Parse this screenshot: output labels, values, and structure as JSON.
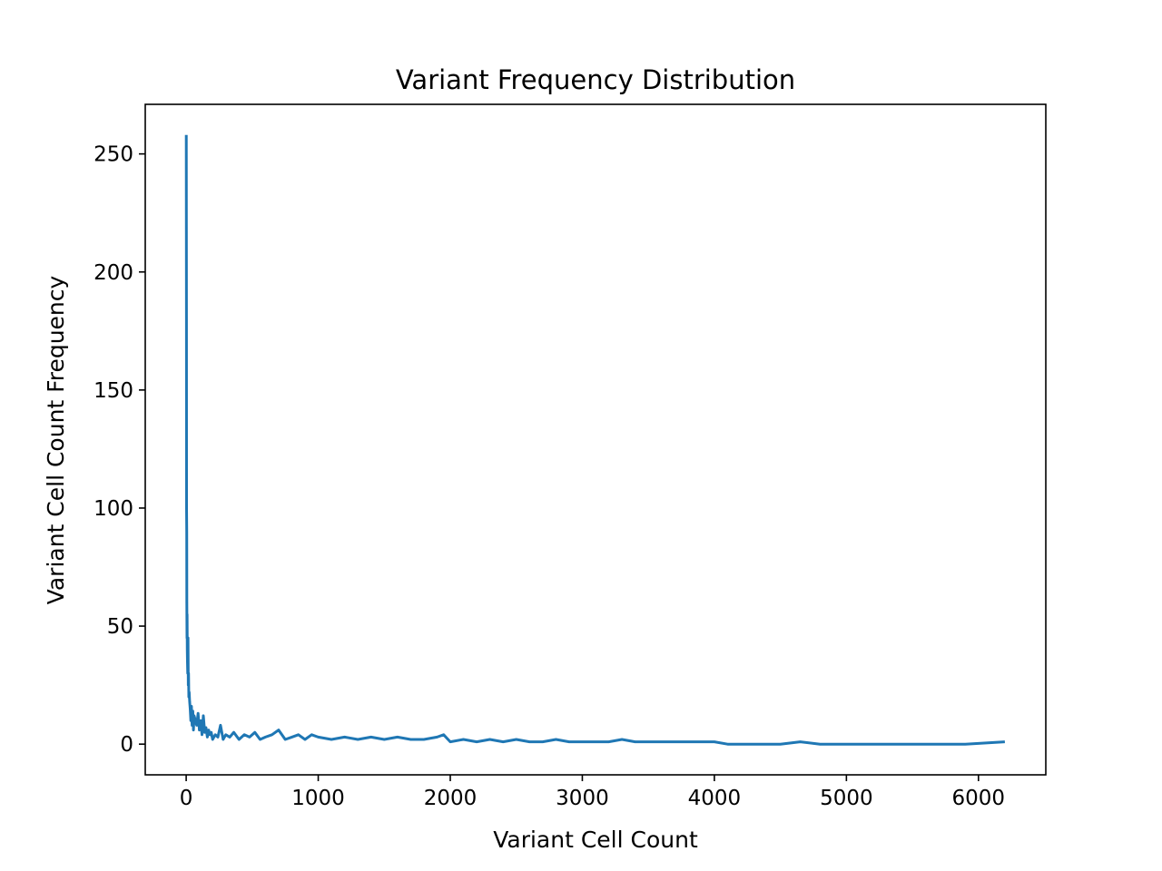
{
  "chart_data": {
    "type": "line",
    "title": "Variant Frequency Distribution",
    "xlabel": "Variant Cell Count",
    "ylabel": "Variant Cell Count Frequency",
    "xlim": [
      -310,
      6510
    ],
    "ylim": [
      -13,
      271
    ],
    "xticks": [
      0,
      1000,
      2000,
      3000,
      4000,
      5000,
      6000
    ],
    "yticks": [
      0,
      50,
      100,
      150,
      200,
      250
    ],
    "grid": false,
    "legend": "none",
    "line_color": "#1f77b4",
    "series": [
      {
        "x": [
          1,
          2,
          3,
          4,
          5,
          6,
          7,
          8,
          10,
          12,
          14,
          16,
          18,
          20,
          23,
          26,
          30,
          35,
          40,
          45,
          50,
          55,
          60,
          70,
          80,
          90,
          100,
          110,
          120,
          130,
          140,
          150,
          160,
          170,
          180,
          190,
          200,
          220,
          240,
          260,
          280,
          300,
          330,
          360,
          400,
          440,
          480,
          520,
          560,
          600,
          650,
          700,
          750,
          800,
          850,
          900,
          950,
          1000,
          1100,
          1200,
          1300,
          1400,
          1500,
          1600,
          1700,
          1800,
          1900,
          1950,
          2000,
          2100,
          2200,
          2300,
          2400,
          2500,
          2600,
          2700,
          2800,
          2900,
          3000,
          3100,
          3200,
          3300,
          3400,
          3500,
          3600,
          3700,
          3800,
          3900,
          4000,
          4100,
          4300,
          4500,
          4650,
          4800,
          5000,
          5300,
          5600,
          5900,
          6200
        ],
        "y": [
          258,
          180,
          100,
          90,
          60,
          45,
          55,
          40,
          35,
          30,
          45,
          25,
          30,
          20,
          22,
          18,
          15,
          10,
          16,
          8,
          14,
          6,
          12,
          10,
          8,
          13,
          6,
          10,
          4,
          12,
          5,
          7,
          3,
          6,
          4,
          5,
          2,
          4,
          3,
          8,
          2,
          4,
          3,
          5,
          2,
          4,
          3,
          5,
          2,
          3,
          4,
          6,
          2,
          3,
          4,
          2,
          4,
          3,
          2,
          3,
          2,
          3,
          2,
          3,
          2,
          2,
          3,
          4,
          1,
          2,
          1,
          2,
          1,
          2,
          1,
          1,
          2,
          1,
          1,
          1,
          1,
          2,
          1,
          1,
          1,
          1,
          1,
          1,
          1,
          0,
          0,
          0,
          1,
          0,
          0,
          0,
          0,
          0,
          1
        ]
      }
    ]
  }
}
